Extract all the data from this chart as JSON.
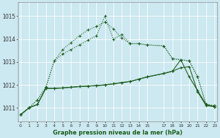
{
  "xlabel": "Graphe pression niveau de la mer (hPa)",
  "background_color": "#cce8f0",
  "grid_color": "#ffffff",
  "line_color": "#1a5c1a",
  "ylim": [
    1010.4,
    1015.6
  ],
  "yticks": [
    1011,
    1012,
    1013,
    1014,
    1015
  ],
  "x_vals": [
    0,
    1,
    2,
    3,
    4,
    5,
    6,
    7,
    8,
    9,
    10,
    11,
    12,
    13,
    14,
    15,
    17,
    18,
    19,
    20,
    21,
    22,
    23
  ],
  "x_tick_labels": [
    "0",
    "1",
    "2",
    "3",
    "4",
    "5",
    "6",
    "7",
    "8",
    "9",
    "10",
    "11",
    "12",
    "13",
    "14",
    "15",
    "17",
    "18",
    "19",
    "20",
    "21",
    "22",
    "23"
  ],
  "line_dotted1": [
    1010.7,
    1011.0,
    1011.35,
    1011.9,
    1013.05,
    1013.35,
    1013.55,
    1013.75,
    1013.95,
    1014.15,
    1015.0,
    1014.0,
    1014.2,
    1013.8,
    1013.8,
    1013.75,
    1013.7,
    1013.15,
    1013.1,
    1013.05,
    1012.35,
    1011.15,
    1011.1
  ],
  "line_dotted2": [
    1010.7,
    1011.0,
    1011.35,
    1011.9,
    1013.05,
    1013.55,
    1013.85,
    1014.15,
    1014.4,
    1014.55,
    1014.75,
    1014.45,
    1014.05,
    1013.8,
    1013.8,
    1013.75,
    1013.7,
    1013.15,
    1013.1,
    1013.05,
    1012.35,
    1011.15,
    1011.1
  ],
  "line_solid1": [
    1010.7,
    1011.0,
    1011.15,
    1011.85,
    1011.85,
    1011.87,
    1011.9,
    1011.93,
    1011.95,
    1011.97,
    1012.0,
    1012.05,
    1012.1,
    1012.15,
    1012.25,
    1012.35,
    1012.5,
    1012.6,
    1012.75,
    1012.8,
    1011.7,
    1011.1,
    1011.05
  ],
  "line_solid2": [
    1010.7,
    1011.0,
    1011.15,
    1011.85,
    1011.85,
    1011.87,
    1011.9,
    1011.93,
    1011.95,
    1011.97,
    1012.0,
    1012.05,
    1012.1,
    1012.15,
    1012.25,
    1012.35,
    1012.5,
    1012.6,
    1013.1,
    1012.35,
    1011.75,
    1011.15,
    1011.05
  ]
}
